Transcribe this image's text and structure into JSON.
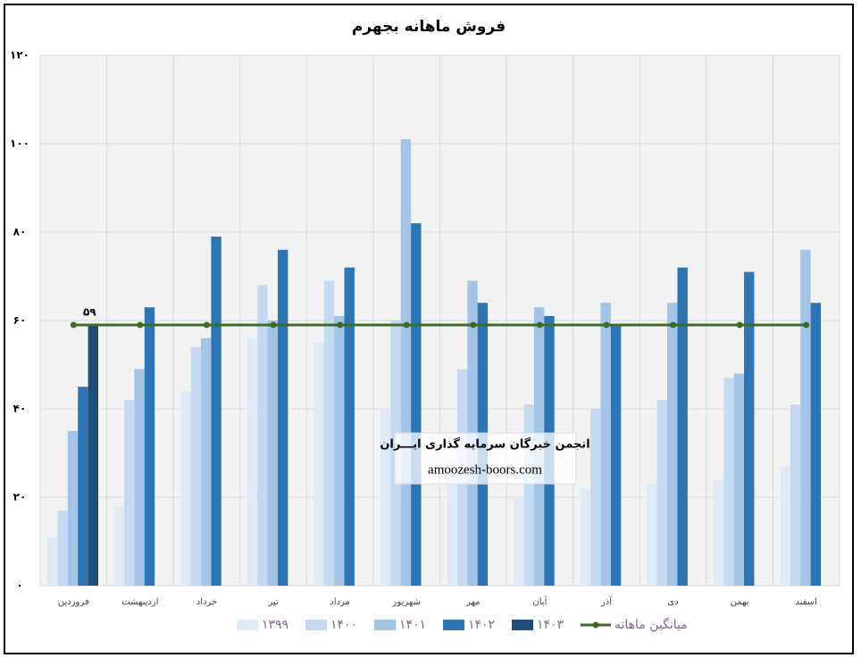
{
  "chart_data": {
    "type": "bar",
    "title": "فروش ماهانه بجهرم",
    "categories": [
      "فروردین",
      "اردیبهشت",
      "خرداد",
      "تیر",
      "مرداد",
      "شهریور",
      "مهر",
      "آبان",
      "آذر",
      "دی",
      "بهمن",
      "اسفند"
    ],
    "series": [
      {
        "name": "۱۳۹۹",
        "color": "#deebf7",
        "values": [
          11,
          18,
          44,
          56,
          55,
          40,
          28,
          20,
          22,
          23,
          24,
          27
        ]
      },
      {
        "name": "۱۴۰۰",
        "color": "#c5daf0",
        "values": [
          17,
          42,
          54,
          68,
          69,
          60,
          49,
          41,
          40,
          42,
          47,
          41
        ]
      },
      {
        "name": "۱۴۰۱",
        "color": "#a3c4e6",
        "values": [
          35,
          49,
          56,
          60,
          61,
          101,
          69,
          63,
          64,
          64,
          48,
          76
        ]
      },
      {
        "name": "۱۴۰۲",
        "color": "#2e75b6",
        "values": [
          45,
          63,
          79,
          76,
          72,
          82,
          64,
          61,
          59,
          72,
          71,
          64
        ]
      },
      {
        "name": "۱۴۰۳",
        "color": "#1f4e79",
        "values": [
          59,
          null,
          null,
          null,
          null,
          null,
          null,
          null,
          null,
          null,
          null,
          null
        ],
        "value_labels": [
          "۵۹",
          null,
          null,
          null,
          null,
          null,
          null,
          null,
          null,
          null,
          null,
          null
        ]
      },
      {
        "name": "میانگین ماهانه",
        "color": "#3a6b27",
        "type": "line",
        "values": [
          59,
          59,
          59,
          59,
          59,
          59,
          59,
          59,
          59,
          59,
          59,
          59
        ]
      }
    ],
    "ylim": [
      0,
      120
    ],
    "yticks": [
      {
        "value": 0,
        "label": "۰"
      },
      {
        "value": 20,
        "label": "۲۰"
      },
      {
        "value": 40,
        "label": "۴۰"
      },
      {
        "value": 60,
        "label": "۶۰"
      },
      {
        "value": 80,
        "label": "۸۰"
      },
      {
        "value": 100,
        "label": "۱۰۰"
      },
      {
        "value": 120,
        "label": "۱۲۰"
      }
    ],
    "grid": true,
    "legend": "bottom",
    "annotations": [
      "انجمن خبرگان سرمایه گذاری ایـــران",
      "amoozesh-boors.com"
    ]
  }
}
